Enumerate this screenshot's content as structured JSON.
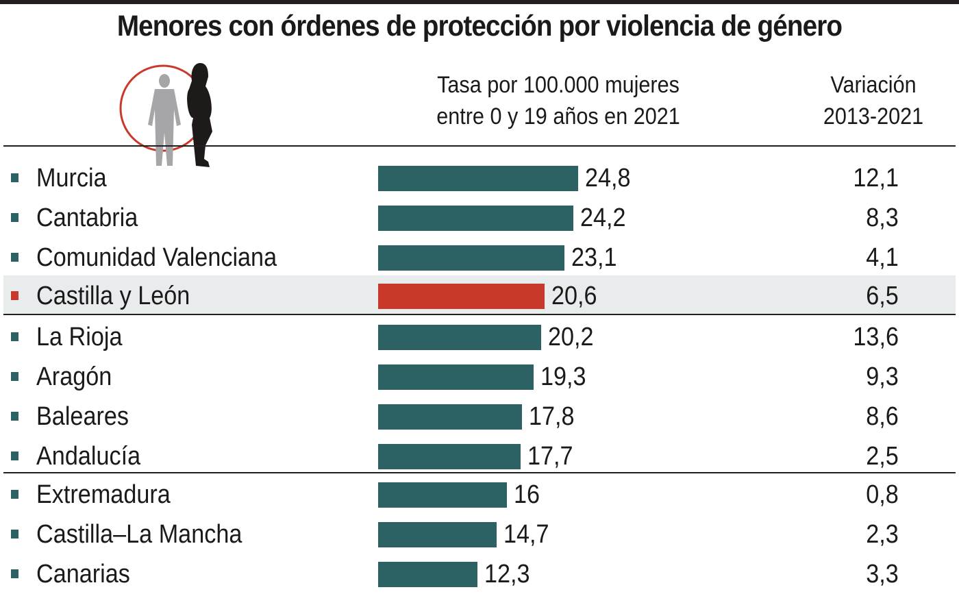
{
  "colors": {
    "default": "#2d6264",
    "highlight": "#c8392b",
    "highlight_band": "#e8ecec",
    "rule": "#231f20"
  },
  "chart_data": {
    "type": "bar",
    "orientation": "horizontal",
    "title": "Menores con órdenes de protección por violencia de género",
    "columns": {
      "rate": "Tasa por 100.000 mujeres entre 0 y 19 años en 2021",
      "variation": "Variación 2013-2021"
    },
    "categories": [
      "Murcia",
      "Cantabria",
      "Comunidad Valenciana",
      "Castilla y León",
      "La Rioja",
      "Aragón",
      "Baleares",
      "Andalucía",
      "Extremadura",
      "Castilla–La Mancha",
      "Canarias"
    ],
    "series": [
      {
        "name": "Tasa por 100.000 mujeres entre 0 y 19 años en 2021",
        "values": [
          24.8,
          24.2,
          23.1,
          20.6,
          20.2,
          19.3,
          17.8,
          17.7,
          16,
          14.7,
          12.3
        ]
      },
      {
        "name": "Variación 2013-2021",
        "values": [
          12.1,
          8.3,
          4.1,
          6.5,
          13.6,
          9.3,
          8.6,
          2.5,
          0.8,
          2.3,
          3.3
        ]
      }
    ],
    "highlight": "Castilla y León",
    "xlim": [
      0,
      25
    ]
  },
  "header": {
    "title": "Menores con órdenes de protección por violencia de género",
    "rate_line1": "Tasa por 100.000 mujeres",
    "rate_line2": "entre 0 y 19 años en 2021",
    "var_line1": "Variación",
    "var_line2": "2013-2021",
    "illustration": "man-and-woman-silhouette-icon"
  },
  "rows": [
    {
      "name": "Murcia",
      "rate": "24,8",
      "var": "12,1"
    },
    {
      "name": "Cantabria",
      "rate": "24,2",
      "var": "8,3"
    },
    {
      "name": "Comunidad Valenciana",
      "rate": "23,1",
      "var": "4,1"
    },
    {
      "name": "Castilla y León",
      "rate": "20,6",
      "var": "6,5"
    },
    {
      "name": "La Rioja",
      "rate": "20,2",
      "var": "13,6"
    },
    {
      "name": "Aragón",
      "rate": "19,3",
      "var": "9,3"
    },
    {
      "name": "Baleares",
      "rate": "17,8",
      "var": "8,6"
    },
    {
      "name": "Andalucía",
      "rate": "17,7",
      "var": "2,5"
    },
    {
      "name": "Extremadura",
      "rate": "16",
      "var": "0,8"
    },
    {
      "name": "Castilla–La Mancha",
      "rate": "14,7",
      "var": "2,3"
    },
    {
      "name": "Canarias",
      "rate": "12,3",
      "var": "3,3"
    }
  ]
}
